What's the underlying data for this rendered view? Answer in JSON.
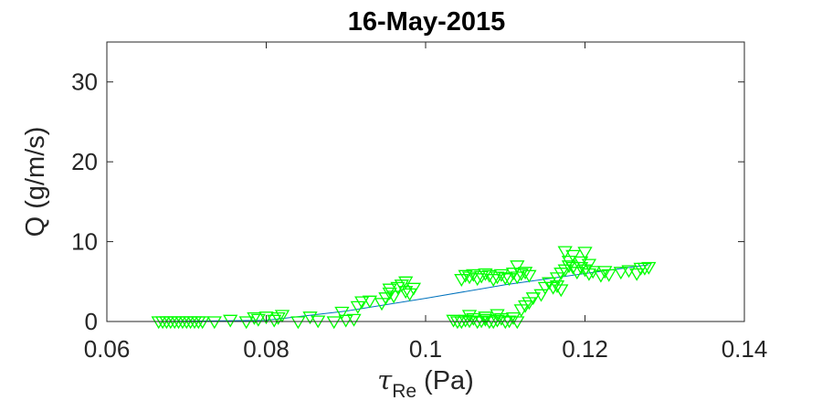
{
  "chart_data": {
    "type": "scatter",
    "title": "16-May-2015",
    "xlabel": {
      "symbol": "τ",
      "subscript": "Re",
      "unit": "(Pa)"
    },
    "ylabel": "Q (g/m/s)",
    "xlim": [
      0.06,
      0.14
    ],
    "ylim": [
      0,
      35
    ],
    "xticks": [
      0.06,
      0.08,
      0.1,
      0.12,
      0.14
    ],
    "xtick_labels": [
      "0.06",
      "0.08",
      "0.1",
      "0.12",
      "0.14"
    ],
    "yticks": [
      0,
      10,
      20,
      30
    ],
    "ytick_labels": [
      "0",
      "10",
      "20",
      "30"
    ],
    "grid": false,
    "legend": "none",
    "series": [
      {
        "marker": "down-triangle",
        "color": "#00ff00",
        "points": [
          [
            0.0665,
            0.0
          ],
          [
            0.067,
            0.0
          ],
          [
            0.0675,
            0.0
          ],
          [
            0.068,
            0.0
          ],
          [
            0.0685,
            0.0
          ],
          [
            0.069,
            0.0
          ],
          [
            0.0695,
            0.0
          ],
          [
            0.07,
            0.0
          ],
          [
            0.0705,
            0.0
          ],
          [
            0.071,
            0.0
          ],
          [
            0.0715,
            0.0
          ],
          [
            0.072,
            0.0
          ],
          [
            0.0735,
            0.0
          ],
          [
            0.0755,
            0.2
          ],
          [
            0.0775,
            0.0
          ],
          [
            0.0785,
            0.5
          ],
          [
            0.079,
            0.3
          ],
          [
            0.08,
            0.6
          ],
          [
            0.081,
            0.2
          ],
          [
            0.0815,
            0.5
          ],
          [
            0.082,
            0.8
          ],
          [
            0.084,
            0.0
          ],
          [
            0.0855,
            0.6
          ],
          [
            0.0865,
            0.1
          ],
          [
            0.0885,
            0.0
          ],
          [
            0.0895,
            1.2
          ],
          [
            0.09,
            0.2
          ],
          [
            0.091,
            0.3
          ],
          [
            0.0915,
            1.9
          ],
          [
            0.092,
            2.5
          ],
          [
            0.093,
            2.6
          ],
          [
            0.0945,
            2.3
          ],
          [
            0.095,
            3.0
          ],
          [
            0.0955,
            3.6
          ],
          [
            0.096,
            3.2
          ],
          [
            0.0965,
            4.3
          ],
          [
            0.097,
            4.6
          ],
          [
            0.0975,
            3.8
          ],
          [
            0.098,
            3.5
          ],
          [
            0.0985,
            4.2
          ],
          [
            0.0955,
            4.1
          ],
          [
            0.0975,
            5.0
          ],
          [
            0.1035,
            0.2
          ],
          [
            0.104,
            0.0
          ],
          [
            0.1045,
            0.0
          ],
          [
            0.105,
            0.2
          ],
          [
            0.1055,
            0.1
          ],
          [
            0.106,
            0.4
          ],
          [
            0.1065,
            0.0
          ],
          [
            0.107,
            0.1
          ],
          [
            0.1075,
            0.3
          ],
          [
            0.108,
            0.0
          ],
          [
            0.1085,
            0.0
          ],
          [
            0.109,
            0.2
          ],
          [
            0.1095,
            0.4
          ],
          [
            0.11,
            0.0
          ],
          [
            0.1105,
            0.1
          ],
          [
            0.111,
            0.5
          ],
          [
            0.1115,
            0.0
          ],
          [
            0.1055,
            0.8
          ],
          [
            0.1075,
            0.6
          ],
          [
            0.109,
            0.9
          ],
          [
            0.1045,
            5.3
          ],
          [
            0.105,
            5.8
          ],
          [
            0.1055,
            5.6
          ],
          [
            0.106,
            5.9
          ],
          [
            0.1065,
            5.4
          ],
          [
            0.107,
            5.7
          ],
          [
            0.1075,
            6.0
          ],
          [
            0.108,
            5.8
          ],
          [
            0.1085,
            5.3
          ],
          [
            0.109,
            5.6
          ],
          [
            0.1095,
            5.9
          ],
          [
            0.11,
            5.5
          ],
          [
            0.1105,
            5.4
          ],
          [
            0.111,
            6.1
          ],
          [
            0.1115,
            5.6
          ],
          [
            0.112,
            6.0
          ],
          [
            0.1125,
            6.2
          ],
          [
            0.1115,
            7.0
          ],
          [
            0.113,
            5.8
          ],
          [
            0.112,
            1.5
          ],
          [
            0.1125,
            2.0
          ],
          [
            0.113,
            2.4
          ],
          [
            0.1135,
            3.0
          ],
          [
            0.1145,
            3.4
          ],
          [
            0.115,
            4.3
          ],
          [
            0.1155,
            4.9
          ],
          [
            0.116,
            4.3
          ],
          [
            0.1165,
            4.5
          ],
          [
            0.117,
            4.0
          ],
          [
            0.1165,
            5.5
          ],
          [
            0.117,
            6.1
          ],
          [
            0.1175,
            6.5
          ],
          [
            0.118,
            7.0
          ],
          [
            0.1185,
            6.8
          ],
          [
            0.119,
            6.2
          ],
          [
            0.1195,
            6.8
          ],
          [
            0.12,
            6.5
          ],
          [
            0.1205,
            7.2
          ],
          [
            0.1175,
            8.8
          ],
          [
            0.1185,
            8.3
          ],
          [
            0.1195,
            7.5
          ],
          [
            0.12,
            8.7
          ],
          [
            0.118,
            7.6
          ],
          [
            0.1205,
            6.0
          ],
          [
            0.121,
            6.3
          ],
          [
            0.122,
            5.8
          ],
          [
            0.123,
            5.9
          ],
          [
            0.1245,
            6.2
          ],
          [
            0.1255,
            6.4
          ],
          [
            0.1265,
            6.0
          ],
          [
            0.127,
            6.7
          ],
          [
            0.1275,
            6.7
          ],
          [
            0.128,
            6.8
          ],
          [
            0.1225,
            6.3
          ]
        ]
      }
    ],
    "fit_line": {
      "color": "#0072bd",
      "points": [
        [
          0.0665,
          0.0
        ],
        [
          0.08,
          0.15
        ],
        [
          0.09,
          1.3
        ],
        [
          0.1,
          2.9
        ],
        [
          0.11,
          4.6
        ],
        [
          0.12,
          6.0
        ],
        [
          0.128,
          7.1
        ]
      ]
    }
  }
}
